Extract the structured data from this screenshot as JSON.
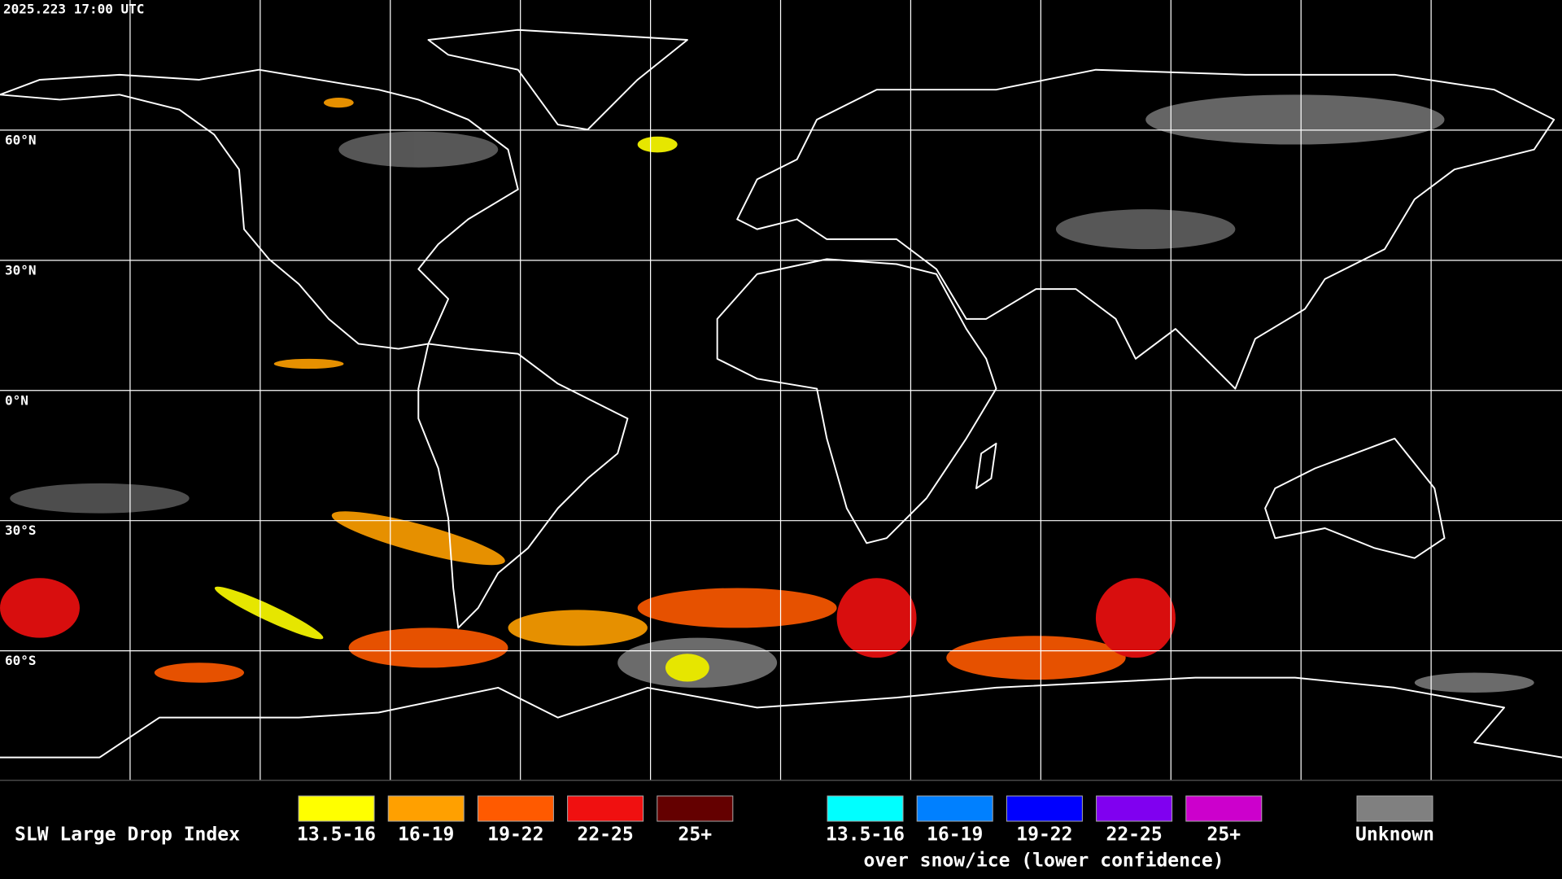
{
  "header": {
    "timestamp": "2025.223 17:00 UTC"
  },
  "map": {
    "latitude_labels": [
      "60°N",
      "30°N",
      "0°N",
      "30°S",
      "60°S"
    ]
  },
  "legend": {
    "title": "SLW Large Drop Index",
    "groups": [
      {
        "items": [
          {
            "label": "13.5-16",
            "color": "#ffff00"
          },
          {
            "label": "16-19",
            "color": "#ffa000"
          },
          {
            "label": "19-22",
            "color": "#ff5a00"
          },
          {
            "label": "22-25",
            "color": "#f01010"
          },
          {
            "label": "25+",
            "color": "#640000"
          }
        ]
      },
      {
        "items": [
          {
            "label": "13.5-16",
            "color": "#00ffff"
          },
          {
            "label": "16-19",
            "color": "#0080ff"
          },
          {
            "label": "19-22",
            "color": "#0000ff"
          },
          {
            "label": "22-25",
            "color": "#8000f0"
          },
          {
            "label": "25+",
            "color": "#cc00cc"
          }
        ],
        "note": "over snow/ice (lower confidence)"
      }
    ],
    "unknown": {
      "label": "Unknown",
      "color": "#808080"
    }
  }
}
